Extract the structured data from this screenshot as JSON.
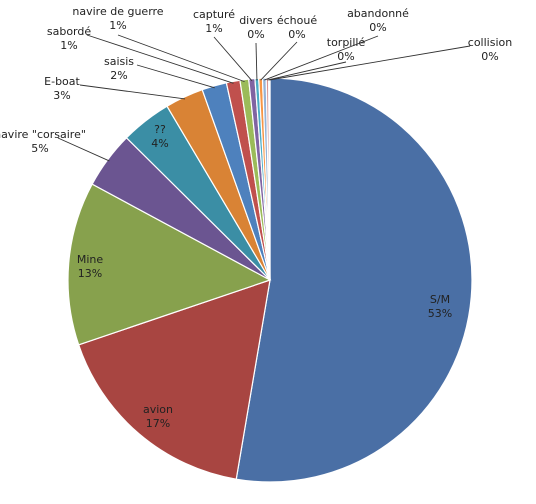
{
  "chart_data": {
    "type": "pie",
    "title": "",
    "slices": [
      {
        "label": "S/M",
        "pct_label": "53%",
        "value": 53.2,
        "color": "#4a6fa5"
      },
      {
        "label": "avion",
        "pct_label": "17%",
        "value": 17.3,
        "color": "#a84541"
      },
      {
        "label": "Mine",
        "pct_label": "13%",
        "value": 13.2,
        "color": "#87a14d"
      },
      {
        "label": "navire \"corsaire\"",
        "pct_label": "5%",
        "value": 4.6,
        "color": "#6b5591"
      },
      {
        "label": "??",
        "pct_label": "4%",
        "value": 4.1,
        "color": "#3b8ea5"
      },
      {
        "label": "E-boat",
        "pct_label": "3%",
        "value": 3.1,
        "color": "#d98335"
      },
      {
        "label": "saisis",
        "pct_label": "2%",
        "value": 2.0,
        "color": "#4e81bd"
      },
      {
        "label": "sabordé",
        "pct_label": "1%",
        "value": 1.1,
        "color": "#c0504d"
      },
      {
        "label": "navire de guerre",
        "pct_label": "1%",
        "value": 0.7,
        "color": "#9bbb59"
      },
      {
        "label": "capturé",
        "pct_label": "1%",
        "value": 0.5,
        "color": "#8064a2"
      },
      {
        "label": "divers",
        "pct_label": "0%",
        "value": 0.3,
        "color": "#4bacc6"
      },
      {
        "label": "échoué",
        "pct_label": "0%",
        "value": 0.3,
        "color": "#f79646"
      },
      {
        "label": "abandonné",
        "pct_label": "0%",
        "value": 0.3,
        "color": "#95b3d7"
      },
      {
        "label": "torpillé",
        "pct_label": "0%",
        "value": 0.2,
        "color": "#d99694"
      },
      {
        "label": "collision",
        "pct_label": "0%",
        "value": 0.1,
        "color": "#c3d69b"
      }
    ]
  }
}
